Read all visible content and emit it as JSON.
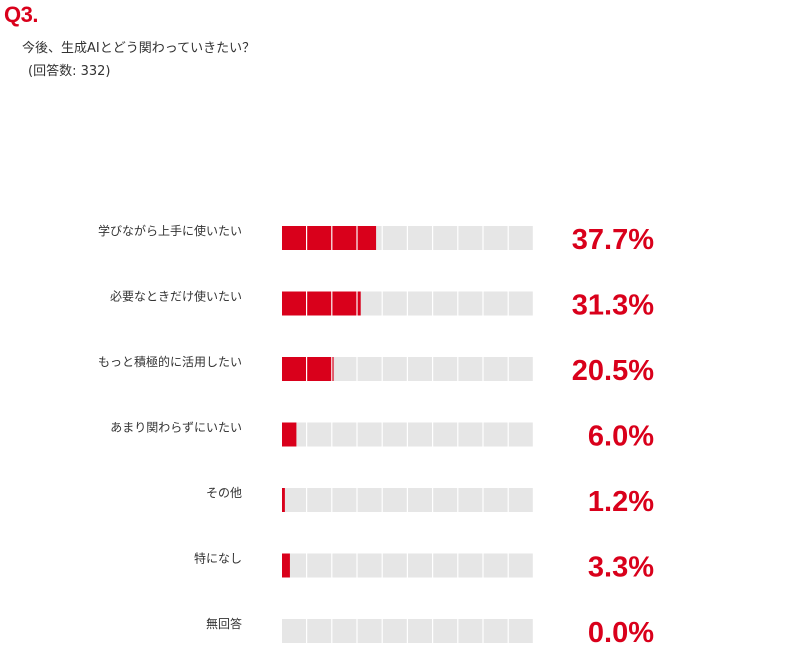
{
  "question": {
    "number": "Q3.",
    "text": "今後、生成AIとどう関わっていきたい？",
    "responses": "(回答数: 332)"
  },
  "colors": {
    "accent": "#d9001b",
    "empty_cell": "#e6e6e6",
    "label": "#333333"
  },
  "chart_data": {
    "type": "bar",
    "title": "",
    "categories": [
      "学びながら上手に使いたい",
      "必要なときだけ使いたい",
      "もっと積極的に活用したい",
      "あまり関わらずにいたい",
      "その他",
      "特になし",
      "無回答"
    ],
    "values": [
      37.7,
      31.3,
      20.5,
      6.0,
      1.2,
      3.3,
      0.0
    ],
    "value_labels": [
      "37.7%",
      "31.3%",
      "20.5%",
      "6.0%",
      "1.2%",
      "3.3%",
      "0.0%"
    ],
    "unit": "%",
    "cells": 10,
    "xlim": [
      0,
      100
    ]
  }
}
